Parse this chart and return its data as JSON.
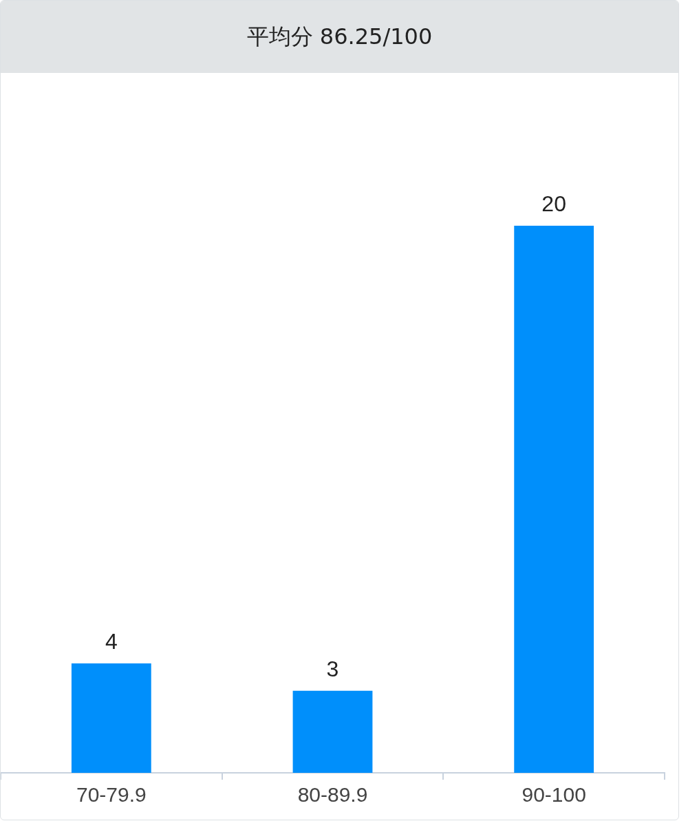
{
  "chart_data": {
    "type": "bar",
    "title": "平均分 86.25/100",
    "categories": [
      "70-79.9",
      "80-89.9",
      "90-100"
    ],
    "values": [
      4,
      3,
      20
    ],
    "color": "#008ffb",
    "data_labels": true
  }
}
